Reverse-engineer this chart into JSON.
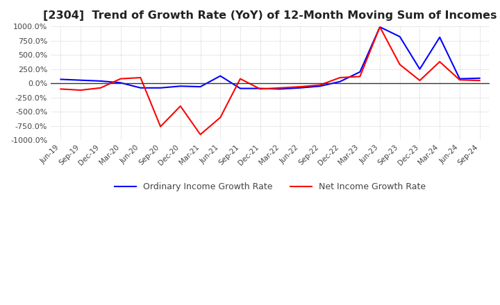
{
  "title": "[2304]  Trend of Growth Rate (YoY) of 12-Month Moving Sum of Incomes",
  "title_fontsize": 11.5,
  "ylim": [
    -1000,
    1000
  ],
  "yticks": [
    -1000,
    -750,
    -500,
    -250,
    0,
    250,
    500,
    750,
    1000
  ],
  "blue_color": "#0000FF",
  "red_color": "#FF0000",
  "grid_color": "#BBBBBB",
  "background_color": "#FFFFFF",
  "legend_labels": [
    "Ordinary Income Growth Rate",
    "Net Income Growth Rate"
  ],
  "dates": [
    "Jun-19",
    "Sep-19",
    "Dec-19",
    "Mar-20",
    "Jun-20",
    "Sep-20",
    "Dec-20",
    "Mar-21",
    "Jun-21",
    "Sep-21",
    "Dec-21",
    "Mar-22",
    "Jun-22",
    "Sep-22",
    "Dec-22",
    "Mar-23",
    "Jun-23",
    "Sep-23",
    "Dec-23",
    "Mar-24",
    "Jun-24",
    "Sep-24"
  ],
  "ordinary_income": [
    70,
    55,
    40,
    10,
    -80,
    -80,
    -50,
    -60,
    130,
    -90,
    -90,
    -100,
    -80,
    -50,
    30,
    200,
    990,
    820,
    250,
    810,
    80,
    90
  ],
  "net_income": [
    -100,
    -120,
    -80,
    80,
    100,
    -760,
    -400,
    -900,
    -600,
    80,
    -100,
    -80,
    -60,
    -30,
    100,
    120,
    990,
    330,
    50,
    380,
    60,
    50
  ]
}
